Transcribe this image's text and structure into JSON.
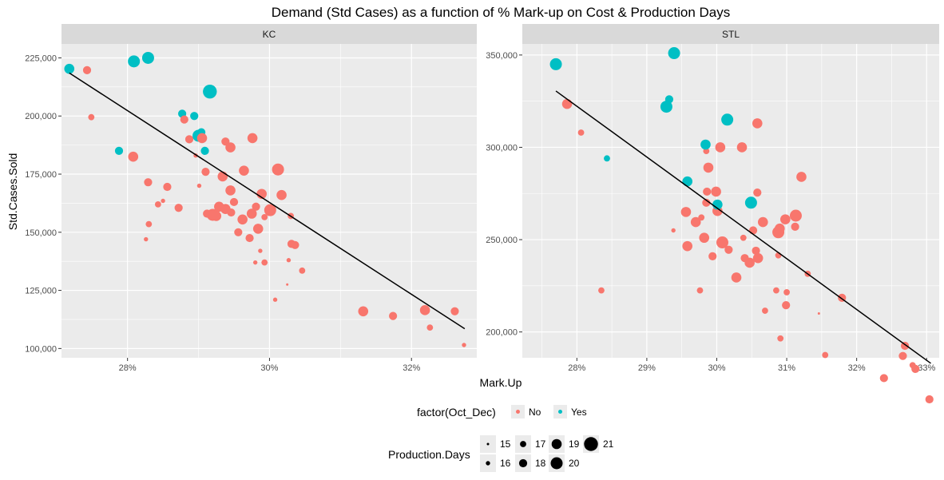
{
  "chart_data": {
    "type": "scatter",
    "title": "Demand (Std Cases) as a function of % Mark-up on Cost & Production Days",
    "xlabel": "Mark.Up",
    "ylabel": "Std.Cases.Sold",
    "colors": {
      "No": "#F8766D",
      "Yes": "#00BFC4",
      "panel": "#EBEBEB",
      "strip": "#D9D9D9",
      "grid": "#FFFFFF",
      "fit": "#000000"
    },
    "legend": {
      "position": "bottom",
      "color_title": "factor(Oct_Dec)",
      "color_entries": [
        "No",
        "Yes"
      ],
      "size_title": "Production.Days",
      "size_entries": [
        "15",
        "16",
        "17",
        "18",
        "19",
        "20",
        "21"
      ]
    },
    "panels": [
      {
        "strip": "KC",
        "xlim": [
          0.2707,
          0.3292
        ],
        "ylim": [
          96000,
          231000
        ],
        "x_ticks": [
          0.28,
          0.3,
          0.32
        ],
        "x_tick_labels": [
          "28%",
          "30%",
          "32%"
        ],
        "y_ticks": [
          100000,
          125000,
          150000,
          175000,
          200000,
          225000
        ],
        "y_tick_labels": [
          "100,000",
          "125,000",
          "150,000",
          "175,000",
          "200,000",
          "225,000"
        ],
        "fit_line": [
          [
            0.2718,
            218500
          ],
          [
            0.3275,
            108500
          ]
        ],
        "points": [
          [
            0.2718,
            220300,
            "Yes",
            19
          ],
          [
            0.2743,
            219700,
            "No",
            18
          ],
          [
            0.2749,
            199500,
            "No",
            17
          ],
          [
            0.2788,
            185000,
            "Yes",
            18
          ],
          [
            0.2809,
            223500,
            "Yes",
            20
          ],
          [
            0.2829,
            225000,
            "Yes",
            20
          ],
          [
            0.2808,
            182500,
            "No",
            19
          ],
          [
            0.2829,
            171500,
            "No",
            18
          ],
          [
            0.283,
            153500,
            "No",
            17
          ],
          [
            0.2826,
            147000,
            "No",
            16
          ],
          [
            0.2843,
            162000,
            "No",
            17
          ],
          [
            0.285,
            163500,
            "No",
            16
          ],
          [
            0.2856,
            169500,
            "No",
            18
          ],
          [
            0.2872,
            160500,
            "No",
            18
          ],
          [
            0.2877,
            201000,
            "Yes",
            18
          ],
          [
            0.288,
            198500,
            "No",
            18
          ],
          [
            0.2887,
            190000,
            "No",
            18
          ],
          [
            0.2894,
            200000,
            "Yes",
            18
          ],
          [
            0.2896,
            183000,
            "No",
            16
          ],
          [
            0.29,
            191500,
            "Yes",
            20
          ],
          [
            0.2904,
            193000,
            "Yes",
            18
          ],
          [
            0.2905,
            190500,
            "No",
            19
          ],
          [
            0.2901,
            170000,
            "No",
            16
          ],
          [
            0.2909,
            185000,
            "Yes",
            18
          ],
          [
            0.291,
            176000,
            "No",
            18
          ],
          [
            0.2912,
            158000,
            "No",
            18
          ],
          [
            0.2916,
            210500,
            "Yes",
            21
          ],
          [
            0.292,
            157500,
            "No",
            20
          ],
          [
            0.2925,
            157000,
            "No",
            19
          ],
          [
            0.2929,
            161000,
            "No",
            19
          ],
          [
            0.2934,
            174000,
            "No",
            19
          ],
          [
            0.2938,
            160000,
            "No",
            19
          ],
          [
            0.2938,
            189000,
            "No",
            18
          ],
          [
            0.2945,
            186500,
            "No",
            19
          ],
          [
            0.2945,
            168000,
            "No",
            19
          ],
          [
            0.2946,
            158500,
            "No",
            18
          ],
          [
            0.295,
            163000,
            "No",
            18
          ],
          [
            0.2956,
            150000,
            "No",
            18
          ],
          [
            0.2962,
            155500,
            "No",
            19
          ],
          [
            0.2964,
            176500,
            "No",
            19
          ],
          [
            0.2972,
            147500,
            "No",
            18
          ],
          [
            0.2975,
            158000,
            "No",
            19
          ],
          [
            0.2976,
            190500,
            "No",
            19
          ],
          [
            0.2981,
            161000,
            "No",
            18
          ],
          [
            0.298,
            137000,
            "No",
            16
          ],
          [
            0.2984,
            151500,
            "No",
            19
          ],
          [
            0.2987,
            142000,
            "No",
            16
          ],
          [
            0.2989,
            166500,
            "No",
            19
          ],
          [
            0.2993,
            137000,
            "No",
            17
          ],
          [
            0.2993,
            156500,
            "No",
            17
          ],
          [
            0.3001,
            159500,
            "No",
            20
          ],
          [
            0.3008,
            121000,
            "No",
            16
          ],
          [
            0.3012,
            177000,
            "No",
            20
          ],
          [
            0.3017,
            166000,
            "No",
            19
          ],
          [
            0.3025,
            127500,
            "No",
            15
          ],
          [
            0.3027,
            138000,
            "No",
            16
          ],
          [
            0.303,
            157000,
            "No",
            17
          ],
          [
            0.3031,
            145000,
            "No",
            18
          ],
          [
            0.3036,
            144500,
            "No",
            18
          ],
          [
            0.3046,
            133500,
            "No",
            17
          ],
          [
            0.3132,
            116000,
            "No",
            19
          ],
          [
            0.3174,
            114000,
            "No",
            18
          ],
          [
            0.3219,
            116500,
            "No",
            19
          ],
          [
            0.3226,
            109000,
            "No",
            17
          ],
          [
            0.3261,
            116000,
            "No",
            18
          ],
          [
            0.3274,
            101500,
            "No",
            16
          ]
        ]
      },
      {
        "strip": "STL",
        "xlim": [
          0.2722,
          0.3318
        ],
        "ylim": [
          186000,
          356000
        ],
        "x_ticks": [
          0.28,
          0.29,
          0.3,
          0.31,
          0.32,
          0.33
        ],
        "x_tick_labels": [
          "28%",
          "29%",
          "30%",
          "31%",
          "32%",
          "33%"
        ],
        "y_ticks": [
          200000,
          250000,
          300000,
          350000
        ],
        "y_tick_labels": [
          "200,000",
          "250,000",
          "300,000",
          "350,000"
        ],
        "fit_line": [
          [
            0.277,
            330500
          ],
          [
            0.3306,
            183000
          ]
        ],
        "points": [
          [
            0.277,
            345000,
            "Yes",
            20
          ],
          [
            0.2786,
            323500,
            "No",
            19
          ],
          [
            0.2806,
            308000,
            "No",
            17
          ],
          [
            0.2835,
            222500,
            "No",
            17
          ],
          [
            0.2843,
            294000,
            "Yes",
            17
          ],
          [
            0.2928,
            322000,
            "Yes",
            20
          ],
          [
            0.2932,
            326000,
            "Yes",
            18
          ],
          [
            0.2939,
            351000,
            "Yes",
            20
          ],
          [
            0.2938,
            255000,
            "No",
            16
          ],
          [
            0.2956,
            265000,
            "No",
            19
          ],
          [
            0.2958,
            246500,
            "No",
            19
          ],
          [
            0.2958,
            281500,
            "Yes",
            19
          ],
          [
            0.297,
            259500,
            "No",
            19
          ],
          [
            0.2976,
            222500,
            "No",
            17
          ],
          [
            0.2978,
            262000,
            "No",
            17
          ],
          [
            0.2982,
            251000,
            "No",
            19
          ],
          [
            0.2985,
            270000,
            "No",
            18
          ],
          [
            0.2985,
            298000,
            "No",
            17
          ],
          [
            0.2984,
            301500,
            "Yes",
            19
          ],
          [
            0.2986,
            276000,
            "No",
            18
          ],
          [
            0.2988,
            289000,
            "No",
            19
          ],
          [
            0.2994,
            241000,
            "No",
            18
          ],
          [
            0.2999,
            276000,
            "No",
            19
          ],
          [
            0.3001,
            265500,
            "No",
            19
          ],
          [
            0.3001,
            269000,
            "Yes",
            19
          ],
          [
            0.3005,
            300000,
            "No",
            19
          ],
          [
            0.3008,
            248500,
            "No",
            20
          ],
          [
            0.3015,
            315000,
            "Yes",
            20
          ],
          [
            0.3017,
            244500,
            "No",
            18
          ],
          [
            0.3028,
            229500,
            "No",
            19
          ],
          [
            0.3036,
            300000,
            "No",
            19
          ],
          [
            0.3038,
            251000,
            "No",
            17
          ],
          [
            0.304,
            240000,
            "No",
            18
          ],
          [
            0.3047,
            237500,
            "No",
            19
          ],
          [
            0.3049,
            270000,
            "Yes",
            20
          ],
          [
            0.3052,
            255000,
            "No",
            18
          ],
          [
            0.3056,
            244000,
            "No",
            18
          ],
          [
            0.3058,
            275500,
            "No",
            18
          ],
          [
            0.3058,
            313000,
            "No",
            19
          ],
          [
            0.3059,
            240000,
            "No",
            19
          ],
          [
            0.3066,
            259500,
            "No",
            19
          ],
          [
            0.3069,
            211500,
            "No",
            17
          ],
          [
            0.3085,
            222500,
            "No",
            17
          ],
          [
            0.3088,
            241500,
            "No",
            17
          ],
          [
            0.309,
            256000,
            "No",
            19
          ],
          [
            0.3088,
            254000,
            "No",
            20
          ],
          [
            0.3091,
            196500,
            "No",
            17
          ],
          [
            0.3098,
            261000,
            "No",
            19
          ],
          [
            0.3099,
            214500,
            "No",
            18
          ],
          [
            0.31,
            221500,
            "No",
            17
          ],
          [
            0.3112,
            257000,
            "No",
            18
          ],
          [
            0.3113,
            263000,
            "No",
            20
          ],
          [
            0.3121,
            284000,
            "No",
            19
          ],
          [
            0.313,
            231500,
            "No",
            17
          ],
          [
            0.3146,
            210000,
            "No",
            15
          ],
          [
            0.3155,
            187500,
            "No",
            17
          ],
          [
            0.3179,
            218500,
            "No",
            18
          ],
          [
            0.3239,
            175000,
            "No",
            18
          ],
          [
            0.3266,
            187000,
            "No",
            18
          ],
          [
            0.3269,
            192500,
            "No",
            18
          ],
          [
            0.328,
            182000,
            "No",
            17
          ],
          [
            0.3284,
            180000,
            "No",
            18
          ],
          [
            0.3304,
            163500,
            "No",
            18
          ]
        ]
      }
    ]
  }
}
